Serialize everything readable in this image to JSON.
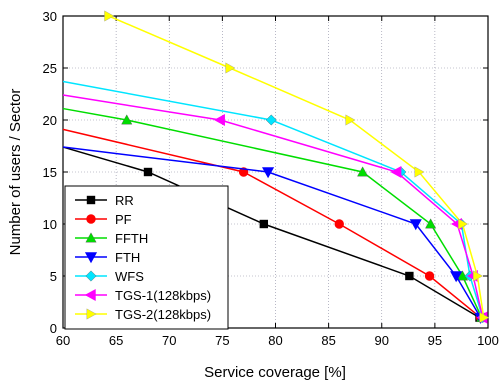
{
  "chart_data": {
    "type": "line",
    "title": "",
    "xlabel": "Service coverage [%]",
    "ylabel": "Number of users / Sector",
    "xlim": [
      60,
      100
    ],
    "ylim": [
      0,
      30
    ],
    "xticks": [
      60,
      65,
      70,
      75,
      80,
      85,
      90,
      95,
      100
    ],
    "yticks": [
      0,
      5,
      10,
      15,
      20,
      25,
      30
    ],
    "grid": true,
    "legend_position": "bottom-left",
    "series": [
      {
        "name": "RR",
        "color": "#000000",
        "marker": "square",
        "points": [
          [
            60,
            17.4
          ],
          [
            68,
            15
          ],
          [
            78.9,
            10
          ],
          [
            92.6,
            5
          ],
          [
            99.2,
            1
          ]
        ]
      },
      {
        "name": "PF",
        "color": "#ff0000",
        "marker": "circle",
        "points": [
          [
            60,
            19.1
          ],
          [
            77,
            15
          ],
          [
            86,
            10
          ],
          [
            94.5,
            5
          ],
          [
            99.3,
            1
          ]
        ]
      },
      {
        "name": "FFTH",
        "color": "#00dd00",
        "marker": "triangle-up",
        "points": [
          [
            60,
            21.1
          ],
          [
            66,
            20
          ],
          [
            88.2,
            15
          ],
          [
            94.6,
            10
          ],
          [
            97.6,
            5
          ],
          [
            99.4,
            1
          ]
        ]
      },
      {
        "name": "FTH",
        "color": "#0000ff",
        "marker": "triangle-down",
        "points": [
          [
            60,
            17.4
          ],
          [
            79.3,
            15
          ],
          [
            93.2,
            10
          ],
          [
            97,
            5
          ],
          [
            99.3,
            1
          ]
        ]
      },
      {
        "name": "WFS",
        "color": "#00e5ff",
        "marker": "diamond",
        "points": [
          [
            60,
            23.7
          ],
          [
            79.6,
            20
          ],
          [
            91.8,
            15
          ],
          [
            97.5,
            10
          ],
          [
            98.3,
            5
          ],
          [
            99.5,
            1
          ]
        ]
      },
      {
        "name": "TGS-1(128kbps)",
        "color": "#ff00ff",
        "marker": "triangle-left",
        "points": [
          [
            60,
            22.4
          ],
          [
            74.8,
            20
          ],
          [
            91.4,
            15
          ],
          [
            97.1,
            10
          ],
          [
            98.6,
            5
          ],
          [
            99.5,
            1
          ]
        ]
      },
      {
        "name": "TGS-2(128kbps)",
        "color": "#ffff00",
        "marker": "triangle-right",
        "points": [
          [
            64.3,
            30
          ],
          [
            75.7,
            25
          ],
          [
            87,
            20
          ],
          [
            93.5,
            15
          ],
          [
            97.6,
            10
          ],
          [
            99,
            5
          ],
          [
            99.6,
            1
          ]
        ]
      }
    ]
  }
}
